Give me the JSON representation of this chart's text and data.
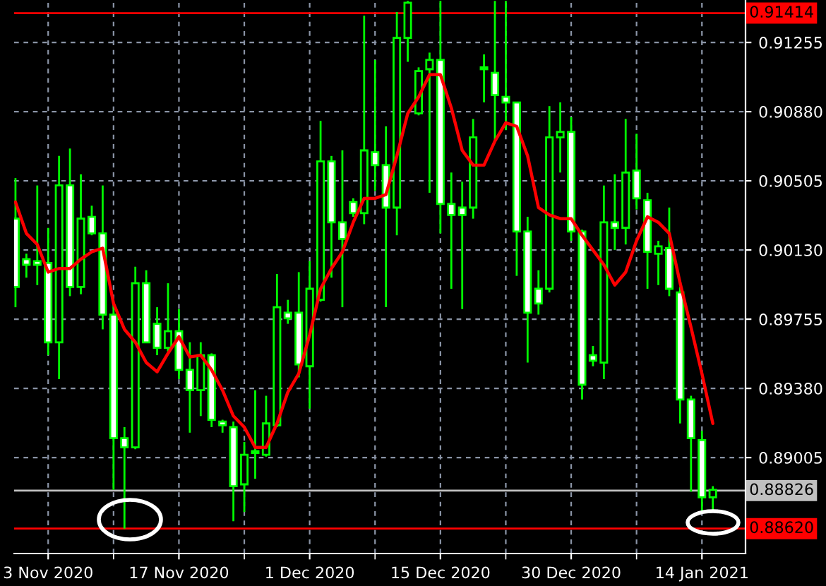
{
  "chart_data": {
    "type": "candlestick",
    "categories": [
      null,
      null,
      null,
      "3 Nov 2020",
      null,
      null,
      null,
      null,
      null,
      null,
      null,
      null,
      null,
      null,
      null,
      "17 Nov 2020",
      null,
      null,
      null,
      null,
      null,
      null,
      null,
      null,
      null,
      null,
      null,
      "1 Dec 2020",
      null,
      null,
      null,
      null,
      null,
      null,
      null,
      null,
      null,
      null,
      null,
      "15 Dec 2020",
      null,
      null,
      null,
      null,
      null,
      null,
      null,
      null,
      null,
      null,
      null,
      "30 Dec 2020",
      null,
      null,
      null,
      null,
      null,
      null,
      null,
      null,
      null,
      null,
      null,
      "14 Jan 2021",
      null
    ],
    "series": [
      {
        "color": "#00ff00",
        "ohlc": [
          [
            0.903,
            0.9052,
            0.8982,
            0.8993
          ],
          [
            0.9008,
            0.9011,
            0.8998,
            0.9005
          ],
          [
            0.9007,
            0.9048,
            0.8994,
            0.9005
          ],
          [
            0.9006,
            0.9025,
            0.8956,
            0.8963
          ],
          [
            0.8963,
            0.9064,
            0.8943,
            0.9048
          ],
          [
            0.9048,
            0.9068,
            0.8988,
            0.8993
          ],
          [
            0.8993,
            0.9054,
            0.8989,
            0.903
          ],
          [
            0.9031,
            0.9037,
            0.9021,
            0.9022
          ],
          [
            0.9022,
            0.9048,
            0.897,
            0.8978
          ],
          [
            0.8978,
            0.8984,
            0.8883,
            0.8911
          ],
          [
            0.8911,
            0.8917,
            0.8862,
            0.8906
          ],
          [
            0.8906,
            0.9004,
            0.8905,
            0.8995
          ],
          [
            0.8995,
            0.9002,
            0.8963,
            0.8963
          ],
          [
            0.8973,
            0.8982,
            0.8956,
            0.896
          ],
          [
            0.896,
            0.8995,
            0.8958,
            0.8969
          ],
          [
            0.8969,
            0.8981,
            0.8943,
            0.8948
          ],
          [
            0.8948,
            0.8963,
            0.8914,
            0.8937
          ],
          [
            0.8937,
            0.8963,
            0.8923,
            0.8956
          ],
          [
            0.8956,
            0.8957,
            0.8917,
            0.8921
          ],
          [
            0.892,
            0.8921,
            0.8914,
            0.8918
          ],
          [
            0.8917,
            0.892,
            0.8866,
            0.8885
          ],
          [
            0.8886,
            0.8909,
            0.8871,
            0.8902
          ],
          [
            0.8903,
            0.8937,
            0.8889,
            0.8904
          ],
          [
            0.8902,
            0.8934,
            0.8901,
            0.8919
          ],
          [
            0.8918,
            0.9,
            0.8917,
            0.8982
          ],
          [
            0.8979,
            0.8986,
            0.8973,
            0.8976
          ],
          [
            0.8979,
            0.9001,
            0.8944,
            0.8951
          ],
          [
            0.895,
            0.9007,
            0.8927,
            0.8992
          ],
          [
            0.8986,
            0.9083,
            0.8985,
            0.9061
          ],
          [
            0.9061,
            0.9064,
            0.8998,
            0.9028
          ],
          [
            0.9028,
            0.9067,
            0.8982,
            0.9019
          ],
          [
            0.9039,
            0.9041,
            0.9031,
            0.9033
          ],
          [
            0.9033,
            0.914,
            0.9027,
            0.9067
          ],
          [
            0.9066,
            0.9116,
            0.9045,
            0.9059
          ],
          [
            0.9059,
            0.908,
            0.8982,
            0.9036
          ],
          [
            0.9036,
            0.9142,
            0.9021,
            0.9128
          ],
          [
            0.9128,
            0.9148,
            0.9115,
            0.9147
          ],
          [
            0.9087,
            0.9112,
            0.9086,
            0.911
          ],
          [
            0.9111,
            0.912,
            0.9044,
            0.9116
          ],
          [
            0.9116,
            0.9148,
            0.9022,
            0.9038
          ],
          [
            0.9038,
            0.9055,
            0.8992,
            0.9032
          ],
          [
            0.9036,
            0.905,
            0.8981,
            0.9032
          ],
          [
            0.9036,
            0.9084,
            0.903,
            0.9074
          ],
          [
            0.9111,
            0.9119,
            0.9093,
            0.9112
          ],
          [
            0.9109,
            0.9148,
            0.9072,
            0.9097
          ],
          [
            0.9096,
            0.9148,
            0.9078,
            0.9093
          ],
          [
            0.9093,
            0.9093,
            0.8999,
            0.9023
          ],
          [
            0.9023,
            0.9031,
            0.8952,
            0.8979
          ],
          [
            0.8992,
            0.9002,
            0.8978,
            0.8984
          ],
          [
            0.8992,
            0.9091,
            0.899,
            0.9074
          ],
          [
            0.9074,
            0.9093,
            0.9055,
            0.9077
          ],
          [
            0.9077,
            0.9085,
            0.9018,
            0.9023
          ],
          [
            0.9023,
            0.9024,
            0.8932,
            0.894
          ],
          [
            0.8956,
            0.8961,
            0.895,
            0.8953
          ],
          [
            0.8952,
            0.9048,
            0.8943,
            0.9028
          ],
          [
            0.9028,
            0.9054,
            0.9013,
            0.9025
          ],
          [
            0.9025,
            0.9084,
            0.9016,
            0.9055
          ],
          [
            0.9056,
            0.9076,
            0.9035,
            0.9041
          ],
          [
            0.904,
            0.9044,
            0.8992,
            0.9012
          ],
          [
            0.9011,
            0.9018,
            0.8994,
            0.9015
          ],
          [
            0.9014,
            0.9036,
            0.8988,
            0.8992
          ],
          [
            0.899,
            0.8993,
            0.8919,
            0.8932
          ],
          [
            0.8932,
            0.8934,
            0.8882,
            0.8911
          ],
          [
            0.891,
            0.8915,
            0.8871,
            0.8879
          ],
          [
            0.8879,
            0.8885,
            0.8872,
            0.8883
          ]
        ]
      },
      {
        "type": "line",
        "color": "#ff0000",
        "values": [
          0.9039,
          0.9022,
          0.9016,
          0.9001,
          0.9003,
          0.9003,
          0.9008,
          0.9012,
          0.9014,
          0.8984,
          0.897,
          0.8963,
          0.8952,
          0.8947,
          0.8957,
          0.8966,
          0.8955,
          0.8956,
          0.8948,
          0.8937,
          0.8923,
          0.8917,
          0.8906,
          0.8906,
          0.8919,
          0.8936,
          0.8946,
          0.8967,
          0.8992,
          0.9003,
          0.9012,
          0.9028,
          0.9041,
          0.9041,
          0.9043,
          0.9064,
          0.9087,
          0.9096,
          0.9108,
          0.9108,
          0.909,
          0.9067,
          0.9059,
          0.9059,
          0.9072,
          0.9082,
          0.908,
          0.9064,
          0.9036,
          0.9032,
          0.903,
          0.903,
          0.9021,
          0.9013,
          0.9005,
          0.8994,
          0.9001,
          0.9018,
          0.9031,
          0.9028,
          0.9022,
          0.8995,
          0.8971,
          0.8946,
          0.8919
        ]
      }
    ],
    "ylim": [
      0.88485,
      0.91485
    ],
    "yticks": [
      {
        "value": 0.89005,
        "label": "0.89005"
      },
      {
        "value": 0.8938,
        "label": "0.89380"
      },
      {
        "value": 0.89755,
        "label": "0.89755"
      },
      {
        "value": 0.9013,
        "label": "0.90130"
      },
      {
        "value": 0.90505,
        "label": "0.90505"
      },
      {
        "value": 0.9088,
        "label": "0.90880"
      },
      {
        "value": 0.91255,
        "label": "0.91255"
      }
    ],
    "ref_lines": [
      {
        "axis": "y",
        "value": 0.91414,
        "label": "0.91414",
        "color": "#ff0000"
      },
      {
        "axis": "y",
        "value": 0.88826,
        "label": "0.88826",
        "color": "#c0c0c0"
      },
      {
        "axis": "y",
        "value": 0.8862,
        "label": "0.88620",
        "color": "#ff0000"
      }
    ],
    "grid": true
  }
}
